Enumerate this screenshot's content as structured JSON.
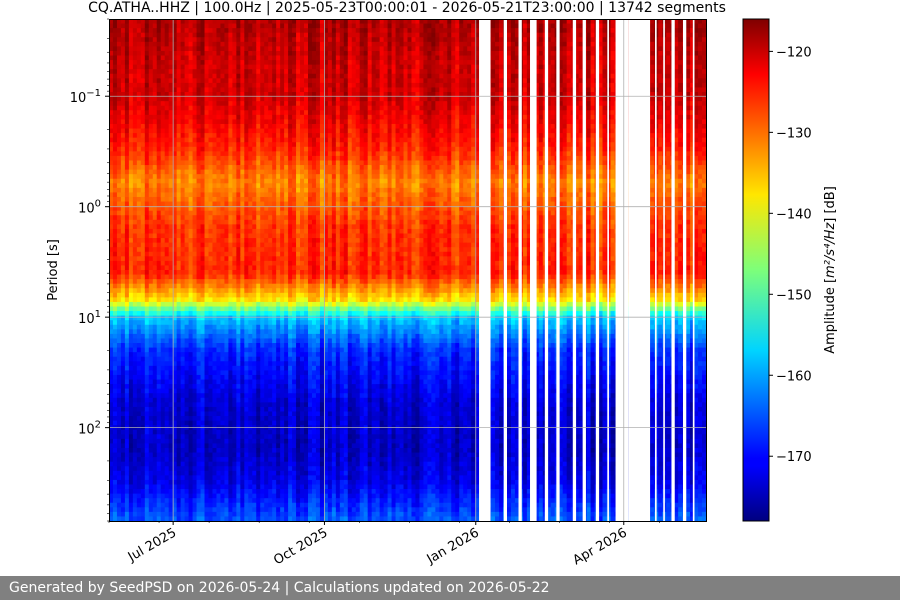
{
  "chart_data": {
    "type": "heatmap",
    "title": "CQ.ATHA..HHZ | 100.0Hz | 2025-05-23T00:00:01 - 2026-05-21T23:00:00 | 13742 segments",
    "xlabel": "",
    "ylabel": "Period [s]",
    "x_range": [
      "2025-05-23",
      "2026-05-21"
    ],
    "y_scale": "log",
    "y_range": [
      0.02,
      700
    ],
    "grid": true,
    "x_ticks": [
      {
        "date": "2025-07-01",
        "label": "Jul 2025"
      },
      {
        "date": "2025-10-01",
        "label": "Oct 2025"
      },
      {
        "date": "2026-01-01",
        "label": "Jan 2026"
      },
      {
        "date": "2026-04-01",
        "label": "Apr 2026"
      }
    ],
    "y_ticks": [
      {
        "value": 0.1,
        "base": "10",
        "exp": "−1"
      },
      {
        "value": 1,
        "base": "10",
        "exp": "0"
      },
      {
        "value": 10,
        "base": "10",
        "exp": "1"
      },
      {
        "value": 100,
        "base": "10",
        "exp": "2"
      }
    ],
    "colorbar": {
      "label_prefix": "Amplitude [",
      "label_unit": "m²/s⁴/Hz",
      "label_suffix": "] [dB]",
      "range": [
        -178,
        -116
      ],
      "ticks": [
        -120,
        -130,
        -140,
        -150,
        -160,
        -170
      ],
      "tick_labels": [
        "−120",
        "−130",
        "−140",
        "−150",
        "−160",
        "−170"
      ],
      "colormap": "jet"
    },
    "profile": [
      {
        "period": 0.02,
        "db": -119
      },
      {
        "period": 0.05,
        "db": -121
      },
      {
        "period": 0.1,
        "db": -121
      },
      {
        "period": 0.3,
        "db": -126
      },
      {
        "period": 0.6,
        "db": -132
      },
      {
        "period": 1.5,
        "db": -127
      },
      {
        "period": 4,
        "db": -126
      },
      {
        "period": 7,
        "db": -138
      },
      {
        "period": 10,
        "db": -158
      },
      {
        "period": 20,
        "db": -168
      },
      {
        "period": 60,
        "db": -173
      },
      {
        "period": 150,
        "db": -174
      },
      {
        "period": 300,
        "db": -172
      },
      {
        "period": 700,
        "db": -165
      }
    ],
    "gaps": [
      {
        "start": "2026-01-03",
        "end": "2026-01-10"
      },
      {
        "start": "2026-01-18",
        "end": "2026-01-20"
      },
      {
        "start": "2026-01-27",
        "end": "2026-01-29"
      },
      {
        "start": "2026-02-03",
        "end": "2026-02-07"
      },
      {
        "start": "2026-02-12",
        "end": "2026-02-14"
      },
      {
        "start": "2026-02-19",
        "end": "2026-02-21"
      },
      {
        "start": "2026-03-01",
        "end": "2026-03-03"
      },
      {
        "start": "2026-03-07",
        "end": "2026-03-09"
      },
      {
        "start": "2026-03-15",
        "end": "2026-03-17"
      },
      {
        "start": "2026-03-22",
        "end": "2026-03-23"
      },
      {
        "start": "2026-03-27",
        "end": "2026-04-04"
      },
      {
        "start": "2026-04-04",
        "end": "2026-04-17"
      },
      {
        "start": "2026-04-20",
        "end": "2026-04-21"
      },
      {
        "start": "2026-04-25",
        "end": "2026-04-26"
      },
      {
        "start": "2026-04-30",
        "end": "2026-05-02"
      },
      {
        "start": "2026-05-07",
        "end": "2026-05-09"
      },
      {
        "start": "2026-05-13",
        "end": "2026-05-14"
      }
    ]
  },
  "footer": {
    "text": "Generated by SeedPSD on 2026-05-24 | Calculations updated on 2026-05-22"
  }
}
